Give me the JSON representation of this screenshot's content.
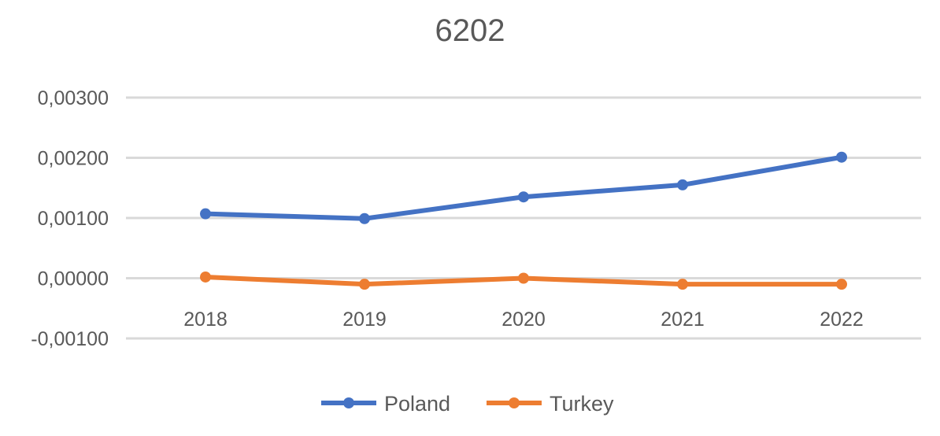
{
  "chart_data": {
    "type": "line",
    "title": "6202",
    "xlabel": "",
    "ylabel": "",
    "categories": [
      "2018",
      "2019",
      "2020",
      "2021",
      "2022"
    ],
    "y_ticks": [
      "-0,00100",
      "0,00000",
      "0,00100",
      "0,00200",
      "0,00300"
    ],
    "y_tick_values": [
      -0.001,
      0,
      0.001,
      0.002,
      0.003
    ],
    "ylim": [
      -0.001,
      0.003
    ],
    "grid": true,
    "legend_position": "bottom",
    "series": [
      {
        "name": "Poland",
        "color": "#4472C4",
        "values": [
          0.00107,
          0.00099,
          0.00135,
          0.00155,
          0.00201
        ]
      },
      {
        "name": "Turkey",
        "color": "#ED7D31",
        "values": [
          2e-05,
          -0.0001,
          0.0,
          -0.0001,
          -0.0001
        ]
      }
    ]
  }
}
